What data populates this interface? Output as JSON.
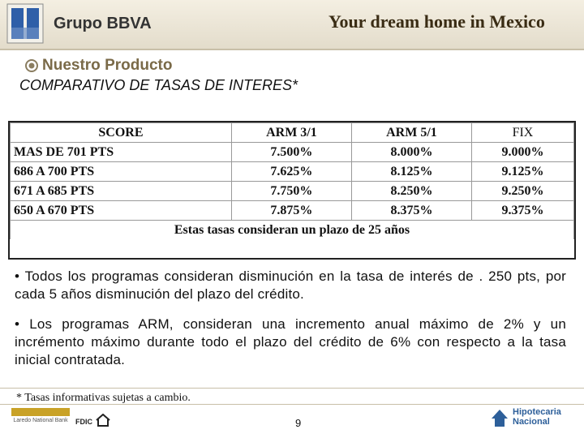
{
  "header": {
    "logo_text": "Grupo BBVA",
    "tagline": "Your dream home in Mexico"
  },
  "section": "Nuestro Producto",
  "title": "COMPARATIVO DE TASAS DE INTERES*",
  "table": {
    "columns": [
      "SCORE",
      "ARM 3/1",
      "ARM 5/1",
      "FIX"
    ],
    "rows": [
      [
        "MAS DE 701 PTS",
        "7.500%",
        "8.000%",
        "9.000%"
      ],
      [
        "686 A 700 PTS",
        "7.625%",
        "8.125%",
        "9.125%"
      ],
      [
        "671 A 685 PTS",
        "7.750%",
        "8.250%",
        "9.250%"
      ],
      [
        "650 A 670 PTS",
        "7.875%",
        "8.375%",
        "9.375%"
      ]
    ],
    "note": "Estas tasas consideran un plazo de 25 años"
  },
  "bullets": [
    "• Todos los programas consideran disminución en la tasa de interés de . 250 pts, por cada 5 años disminución del plazo del crédito.",
    "• Los programas ARM, consideran una incremento anual máximo de 2% y un incrémento máximo durante todo el plazo del crédito de 6% con respecto a la tasa inicial contratada."
  ],
  "footnote": "* Tasas informativas sujetas a cambio.",
  "footer": {
    "page_number": "9",
    "left_logo": "Laredo National Bank",
    "fdic": "FDIC",
    "right_logo_line1": "Hipotecaria",
    "right_logo_line2": "Nacional"
  }
}
